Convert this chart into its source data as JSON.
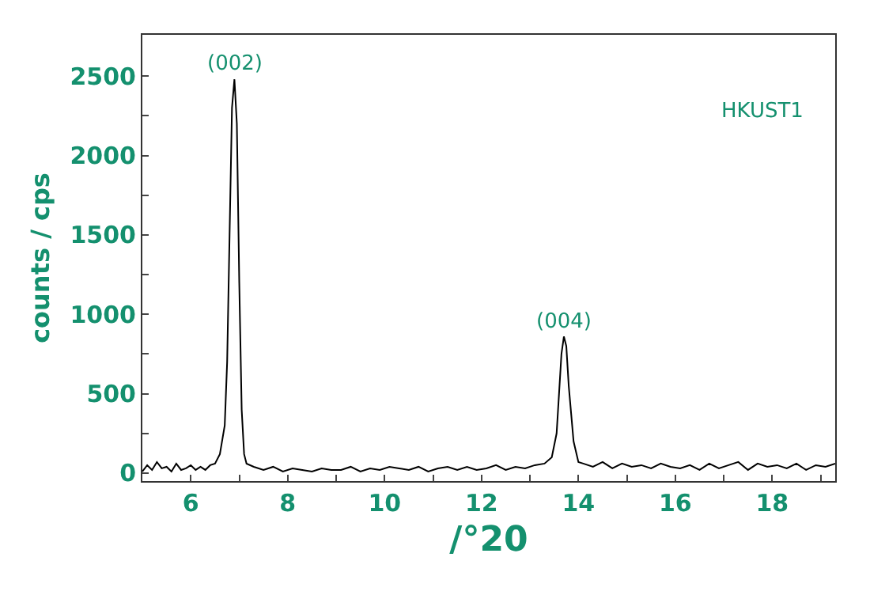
{
  "chart_data": {
    "type": "line",
    "xlabel": "/°20",
    "ylabel": "counts / cps",
    "x": [
      5.0,
      5.1,
      5.2,
      5.3,
      5.4,
      5.5,
      5.6,
      5.7,
      5.8,
      5.9,
      6.0,
      6.1,
      6.2,
      6.3,
      6.4,
      6.5,
      6.6,
      6.7,
      6.75,
      6.8,
      6.85,
      6.9,
      6.95,
      7.0,
      7.05,
      7.1,
      7.15,
      7.3,
      7.5,
      7.7,
      7.9,
      8.1,
      8.3,
      8.5,
      8.7,
      8.9,
      9.1,
      9.3,
      9.5,
      9.7,
      9.9,
      10.1,
      10.3,
      10.5,
      10.7,
      10.9,
      11.1,
      11.3,
      11.5,
      11.7,
      11.9,
      12.1,
      12.3,
      12.5,
      12.7,
      12.9,
      13.1,
      13.3,
      13.45,
      13.55,
      13.6,
      13.65,
      13.7,
      13.75,
      13.8,
      13.9,
      14.0,
      14.1,
      14.3,
      14.5,
      14.7,
      14.9,
      15.1,
      15.3,
      15.5,
      15.7,
      15.9,
      16.1,
      16.3,
      16.5,
      16.7,
      16.9,
      17.1,
      17.3,
      17.5,
      17.7,
      17.9,
      18.1,
      18.3,
      18.5,
      18.7,
      18.9,
      19.1,
      19.3
    ],
    "series": [
      {
        "color": "#000000",
        "values": [
          10,
          50,
          20,
          70,
          30,
          40,
          10,
          60,
          20,
          30,
          50,
          20,
          40,
          20,
          50,
          60,
          120,
          300,
          700,
          1500,
          2300,
          2480,
          2200,
          1200,
          400,
          120,
          60,
          40,
          20,
          40,
          10,
          30,
          20,
          10,
          30,
          20,
          20,
          40,
          10,
          30,
          20,
          40,
          30,
          20,
          40,
          10,
          30,
          40,
          20,
          40,
          20,
          30,
          50,
          20,
          40,
          30,
          50,
          60,
          100,
          250,
          500,
          750,
          860,
          800,
          550,
          200,
          70,
          60,
          40,
          70,
          30,
          60,
          40,
          50,
          30,
          60,
          40,
          30,
          50,
          20,
          60,
          30,
          50,
          70,
          20,
          60,
          40,
          50,
          30,
          60,
          20,
          50,
          40,
          60
        ]
      }
    ],
    "xlim": [
      5.0,
      19.3
    ],
    "ylim": [
      -50,
      2760
    ],
    "xticks": [
      6,
      {
        "value": 7,
        "label": null
      },
      8,
      {
        "value": 9,
        "label": null
      },
      10,
      {
        "value": 11,
        "label": null
      },
      12,
      {
        "value": 13,
        "label": null
      },
      14,
      {
        "value": 15,
        "label": null
      },
      16,
      {
        "value": 17,
        "label": null
      },
      18,
      {
        "value": 19,
        "label": null
      }
    ],
    "yticks": [
      0,
      {
        "value": 250,
        "label": null
      },
      500,
      {
        "value": 750,
        "label": null
      },
      1000,
      {
        "value": 1250,
        "label": null
      },
      1500,
      {
        "value": 1750,
        "label": null
      },
      2000,
      {
        "value": 2250,
        "label": null
      },
      2500
    ],
    "annotations": [
      {
        "text": "(002)",
        "x": 6.9,
        "y": 2480
      },
      {
        "text": "(004)",
        "x": 13.7,
        "y": 860
      },
      "HKUST1"
    ],
    "marker": "none",
    "line_style": "solid"
  }
}
